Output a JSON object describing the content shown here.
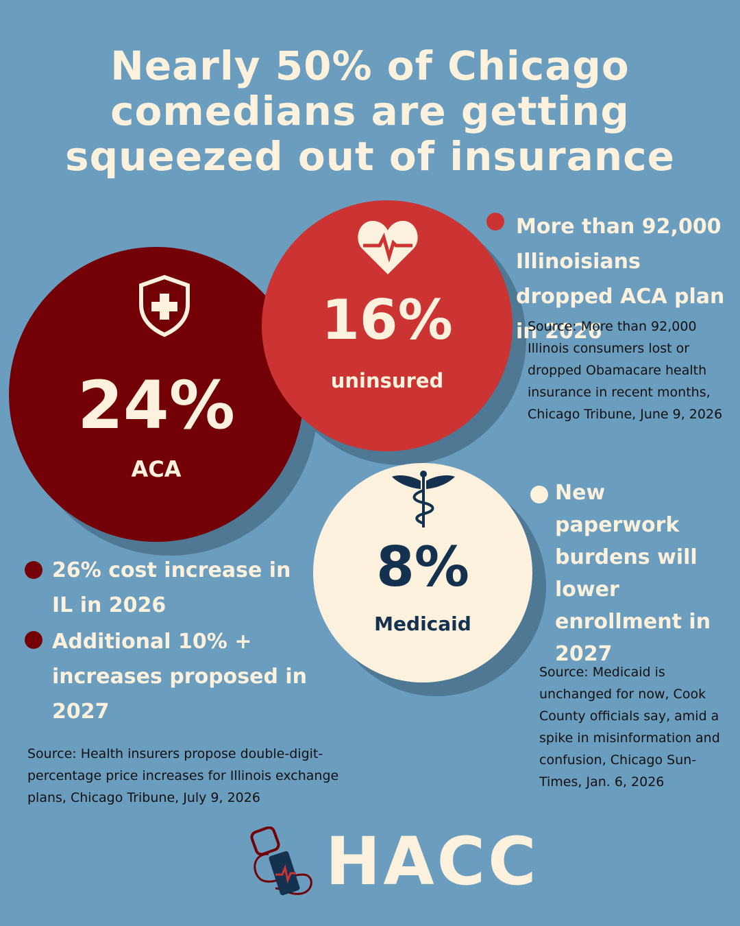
{
  "title": {
    "lines": [
      "Nearly 50% of Chicago",
      "comedians are getting",
      "squeezed out of insurance"
    ]
  },
  "stats": [
    {
      "value": "24%",
      "label": "ACA"
    },
    {
      "value": "16%",
      "label": "uninsured"
    },
    {
      "value": "8%",
      "label": "Medicaid"
    }
  ],
  "aca_notes": {
    "bullets": [
      "26% cost increase in IL in 2026",
      "Additional 10% + increases proposed in 2027"
    ],
    "source": "Source: Health insurers propose double-digit-percentage price increases for Illinois exchange plans, Chicago Tribune, July 9, 2026"
  },
  "uninsured_notes": {
    "bullet": "More than 92,000 Illinoisians dropped ACA plan in 2026",
    "source": "Source: More than 92,000 Illinois consumers lost or dropped Obamacare health insurance in recent months, Chicago Tribune, June 9, 2026"
  },
  "medicaid_notes": {
    "bullet": "New paperwork burdens will lower enrollment in 2027",
    "source": "Source: Medicaid is unchanged for now, Cook County officials say, amid a spike in misinformation and confusion, Chicago Sun-Times, Jan. 6, 2026"
  },
  "logo": {
    "text": "HACC"
  }
}
